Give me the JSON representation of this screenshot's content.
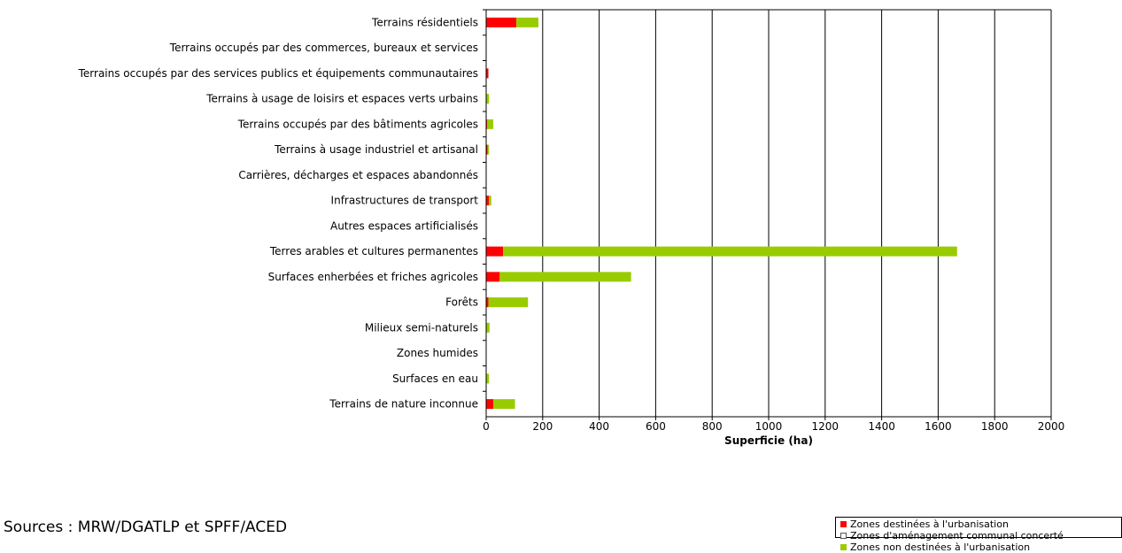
{
  "chart_data": {
    "type": "bar",
    "orientation": "horizontal",
    "stacked": true,
    "categories": [
      "Terrains résidentiels",
      "Terrains occupés par des commerces, bureaux et services",
      "Terrains occupés par des services publics et équipements communautaires",
      "Terrains à usage de loisirs et espaces verts urbains",
      "Terrains occupés par des bâtiments agricoles",
      "Terrains à usage industriel et artisanal",
      "Carrières, décharges et espaces abandonnés",
      "Infrastructures de transport",
      "Autres espaces artificialisés",
      "Terres arables et cultures permanentes",
      "Surfaces enherbées et friches agricoles",
      "Forêts",
      "Milieux semi-naturels",
      "Zones humides",
      "Surfaces en eau",
      "Terrains de nature inconnue"
    ],
    "series": [
      {
        "name": "Zones destinées à l'urbanisation",
        "color": "#ff0000",
        "values": [
          107,
          0,
          8,
          0,
          3,
          5,
          0,
          10,
          0,
          60,
          48,
          8,
          0,
          0,
          0,
          25
        ]
      },
      {
        "name": "Zones d'aménagement communal concerté",
        "color": "#ffffff",
        "values": [
          0,
          0,
          0,
          0,
          0,
          0,
          0,
          0,
          0,
          0,
          0,
          0,
          0,
          0,
          0,
          0
        ]
      },
      {
        "name": "Zones non destinées à l'urbanisation",
        "color": "#99cc00",
        "values": [
          78,
          0,
          0,
          10,
          22,
          5,
          0,
          8,
          0,
          1607,
          465,
          140,
          12,
          0,
          10,
          77
        ]
      }
    ],
    "xlabel": "Superficie (ha)",
    "ylabel": "",
    "xlim": [
      0,
      2000
    ],
    "xticks": [
      0,
      200,
      400,
      600,
      800,
      1000,
      1200,
      1400,
      1600,
      1800,
      2000
    ],
    "grid": "vertical",
    "legend_position": "bottom-right"
  },
  "source_note": "Sources : MRW/DGATLP et SPFF/ACED"
}
